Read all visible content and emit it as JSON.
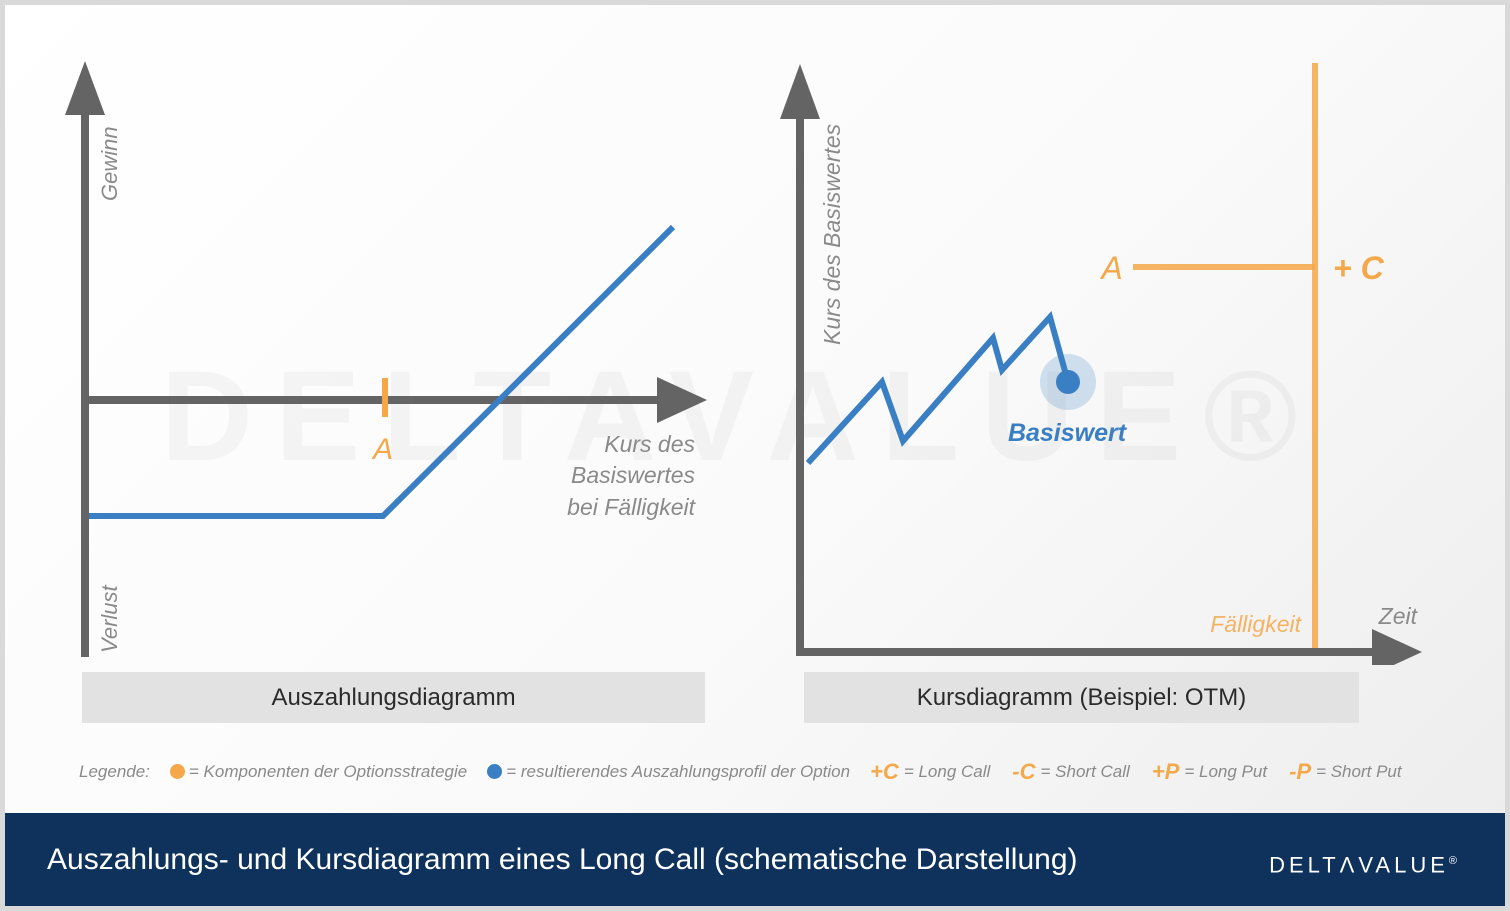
{
  "watermark": "DELTAVALUE®",
  "left_panel": {
    "y_axis_top_label": "Gewinn",
    "y_axis_bottom_label": "Verlust",
    "x_axis_label_lines": [
      "Kurs des",
      "Basiswertes",
      "bei Fälligkeit"
    ],
    "strike_label": "A",
    "caption": "Auszahlungsdiagramm"
  },
  "right_panel": {
    "y_axis_label": "Kurs des Basiswertes",
    "x_axis_label": "Zeit",
    "strike_label": "A",
    "option_label": "+ C",
    "maturity_label": "Fälligkeit",
    "underlying_label": "Basiswert",
    "caption": "Kursdiagramm (Beispiel: OTM)"
  },
  "legend": {
    "prefix": "Legende:",
    "components_text": "= Komponenten der Optionsstrategie",
    "profile_text": "= resultierendes Auszahlungsprofil der Option",
    "codes": [
      {
        "code": "+C",
        "desc": "= Long Call"
      },
      {
        "code": "-C",
        "desc": "= Short Call"
      },
      {
        "code": "+P",
        "desc": "= Long Put"
      },
      {
        "code": "-P",
        "desc": "= Short Put"
      }
    ]
  },
  "footer": {
    "title": "Auszahlungs- und Kursdiagramm eines Long Call (schematische Darstellung)",
    "logo_pre": "DELT",
    "logo_delta": "Λ",
    "logo_post": "VALUE",
    "logo_mark": "®"
  },
  "colors": {
    "axis": "#646464",
    "profile": "#3a7fc4",
    "component": "#f5a84a",
    "footer_bg": "#0e325c",
    "label_gray": "#8a8a8a"
  }
}
